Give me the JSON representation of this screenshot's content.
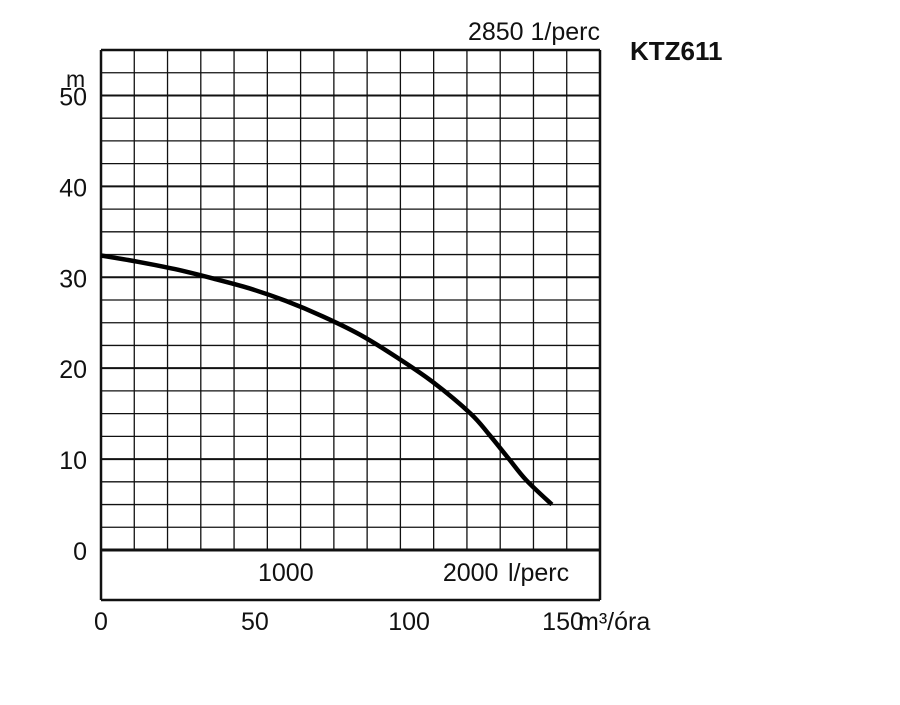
{
  "chart_data": {
    "type": "line",
    "title": "KTZ611",
    "subtitle": "2850 1/perc",
    "ylabel": "m",
    "ylim": [
      0,
      55
    ],
    "yticks": [
      0,
      10,
      20,
      30,
      40,
      50
    ],
    "xlim": [
      0,
      2700
    ],
    "primary_axis_label": "l/perc",
    "primary_axis_ticks": [
      {
        "label": "1000",
        "value": 1000
      },
      {
        "label": "2000",
        "value": 2000
      }
    ],
    "secondary_axis_label": "m³/óra",
    "secondary_axis_ticks": [
      {
        "label": "0",
        "value": 0
      },
      {
        "label": "50",
        "value": 833
      },
      {
        "label": "100",
        "value": 1667
      },
      {
        "label": "150",
        "value": 2500
      }
    ],
    "grid": true,
    "series": [
      {
        "x": [
          0,
          200,
          400,
          600,
          800,
          1000,
          1200,
          1400,
          1600,
          1800,
          2000,
          2100,
          2200,
          2300,
          2440
        ],
        "y": [
          32.4,
          31.7,
          30.9,
          29.9,
          28.8,
          27.4,
          25.7,
          23.7,
          21.2,
          18.4,
          15.0,
          12.7,
          10.2,
          7.7,
          5.0
        ]
      }
    ],
    "colors": {
      "grid": "#111111",
      "curve": "#000000",
      "text": "#111111"
    }
  }
}
